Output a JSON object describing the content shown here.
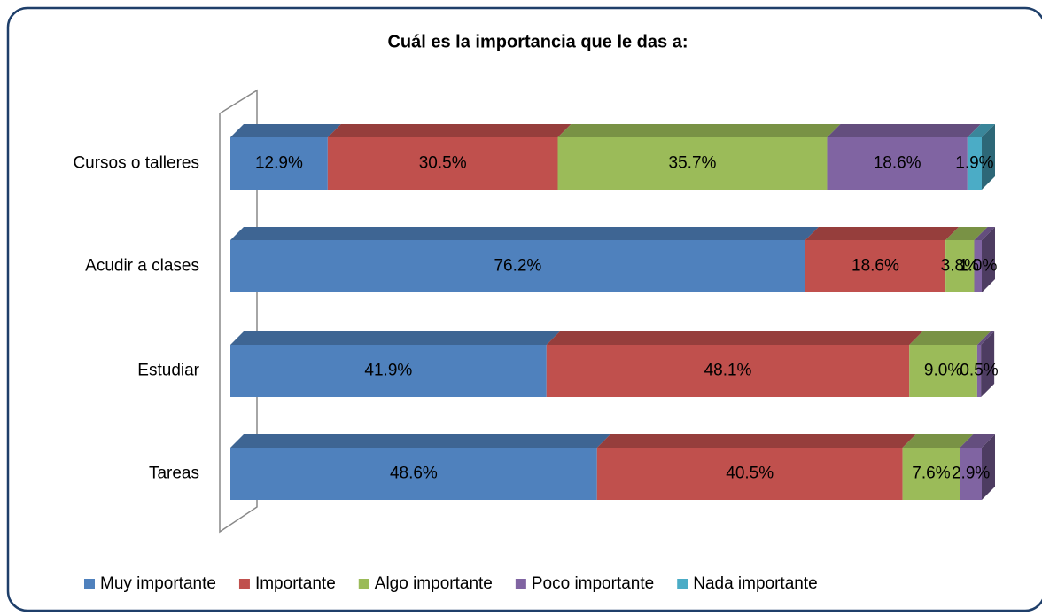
{
  "chart_data": {
    "type": "stacked_bar_3d",
    "title": "Cuál es la importancia que le das a:",
    "categories": [
      "Cursos o talleres",
      "Acudir a clases",
      "Estudiar",
      "Tareas"
    ],
    "legend": "bottom",
    "series": [
      {
        "name": "Muy importante",
        "color": "#4f81bd",
        "values": [
          12.9,
          76.2,
          41.9,
          48.6
        ],
        "value_labels": [
          "12.9%",
          "76.2%",
          "41.9%",
          "48.6%"
        ]
      },
      {
        "name": "Importante",
        "color": "#c0504d",
        "values": [
          30.5,
          18.6,
          48.1,
          40.5
        ],
        "value_labels": [
          "30.5%",
          "18.6%",
          "48.1%",
          "40.5%"
        ]
      },
      {
        "name": "Algo importante",
        "color": "#9bbb59",
        "values": [
          35.7,
          3.8,
          9.0,
          7.6
        ],
        "value_labels": [
          "35.7%",
          "3.8%",
          "9.0%",
          "7.6%"
        ]
      },
      {
        "name": "Poco importante",
        "color": "#8064a2",
        "values": [
          18.6,
          1.0,
          0.5,
          2.9
        ],
        "value_labels": [
          "18.6%",
          "1.0%",
          "0.5%",
          "2.9%"
        ]
      },
      {
        "name": "Nada importante",
        "color": "#4bacc6",
        "values": [
          1.9,
          null,
          null,
          null
        ],
        "value_labels": [
          "1.9%",
          null,
          null,
          null
        ]
      }
    ]
  }
}
